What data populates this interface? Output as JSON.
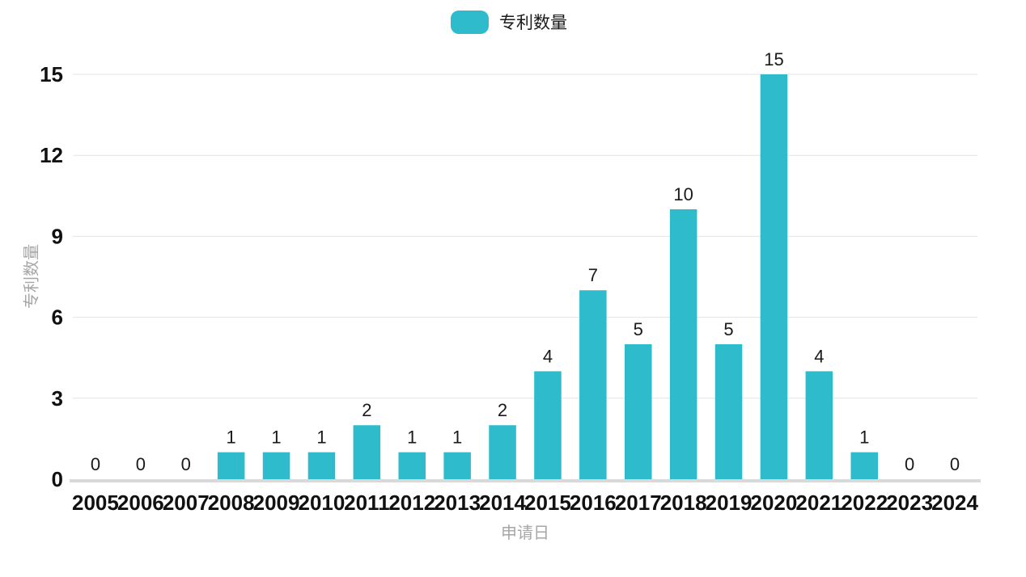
{
  "chart_data": {
    "type": "bar",
    "title": "",
    "legend": "专利数量",
    "xlabel": "申请日",
    "ylabel": "专利数量",
    "categories": [
      "2005",
      "2006",
      "2007",
      "2008",
      "2009",
      "2010",
      "2011",
      "2012",
      "2013",
      "2014",
      "2015",
      "2016",
      "2017",
      "2018",
      "2019",
      "2020",
      "2021",
      "2022",
      "2023",
      "2024"
    ],
    "values": [
      0,
      0,
      0,
      1,
      1,
      1,
      2,
      1,
      1,
      2,
      4,
      7,
      5,
      10,
      5,
      15,
      4,
      1,
      0,
      0
    ],
    "yticks": [
      0,
      3,
      6,
      9,
      12,
      15
    ],
    "ylim": [
      0,
      15
    ],
    "grid": true,
    "legend_position": "top-center",
    "colors": {
      "bar": "#2ebccd",
      "grid": "#e3e3e3",
      "axis_line": "#d9d9d9",
      "tick": "#111111",
      "value_label": "#1a1a1a",
      "axis_title": "#a6a6a6",
      "legend_text": "#1a1a1a",
      "background": "#ffffff"
    }
  }
}
